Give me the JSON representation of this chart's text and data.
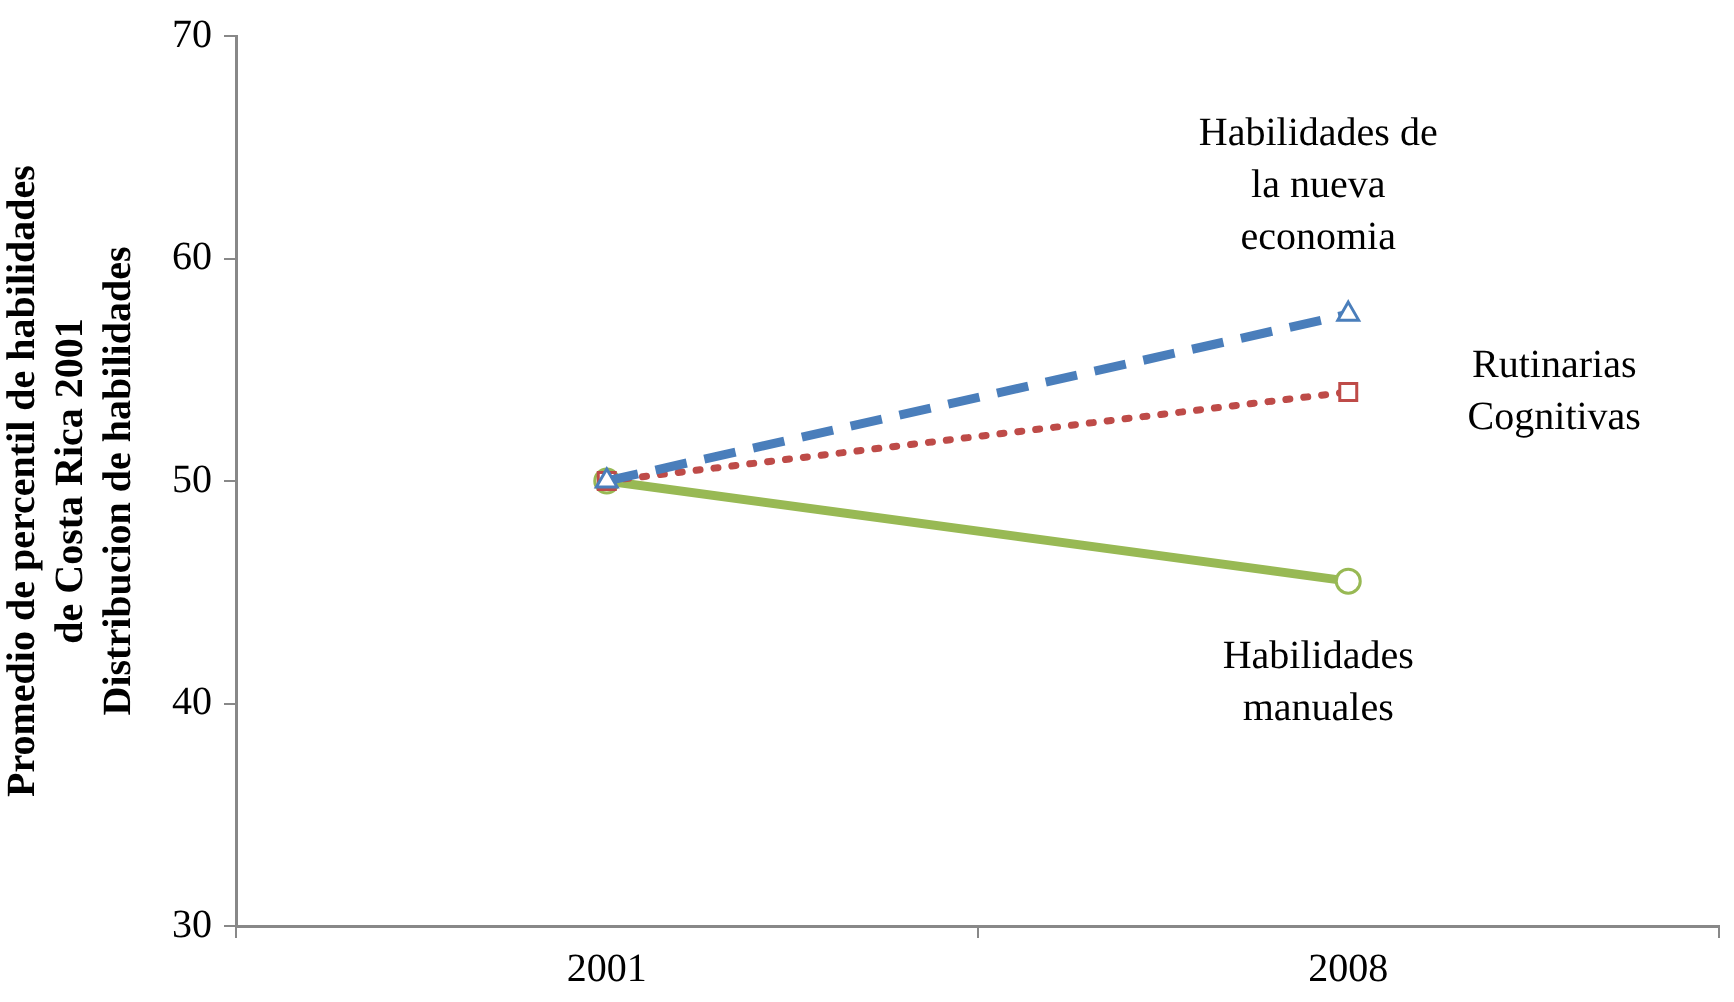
{
  "chart_data": {
    "type": "line",
    "ylabel": "Promedio de percentil de habilidades\nde Costa Rica 2001\nDistribucion de habilidades",
    "categories": [
      "2001",
      "2008"
    ],
    "ylim": [
      30,
      70
    ],
    "yticks": [
      30,
      40,
      50,
      60,
      70
    ],
    "grid": false,
    "legend": false,
    "series": [
      {
        "name": "Habilidades de la nueva economia",
        "color": "#4a7ebb",
        "values": [
          50,
          57.5
        ],
        "marker": "triangle",
        "line_style": "dashed"
      },
      {
        "name": "Rutinarias Cognitivas",
        "color": "#be4b48",
        "values": [
          50,
          54
        ],
        "marker": "square",
        "line_style": "dotted"
      },
      {
        "name": "Habilidades manuales",
        "color": "#98b954",
        "values": [
          50,
          45.5
        ],
        "marker": "circle",
        "line_style": "solid"
      }
    ]
  }
}
